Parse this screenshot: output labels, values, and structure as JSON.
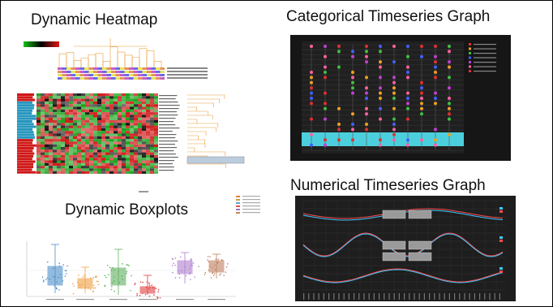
{
  "titles": {
    "heatmap": "Dynamic Heatmap",
    "categorical": "Categorical Timeseries Graph",
    "boxplots": "Dynamic Boxplots",
    "numerical": "Numerical Timeseries Graph"
  },
  "colors": {
    "heatmap_red": "#d01818",
    "heatmap_green": "#18a018",
    "heatmap_blue": "#2596be",
    "cat_bg": "#161616",
    "cat_highlight": "#4ccfdc",
    "num_bg": "#1e1e1e",
    "dendrogram": "#e8a040"
  }
}
